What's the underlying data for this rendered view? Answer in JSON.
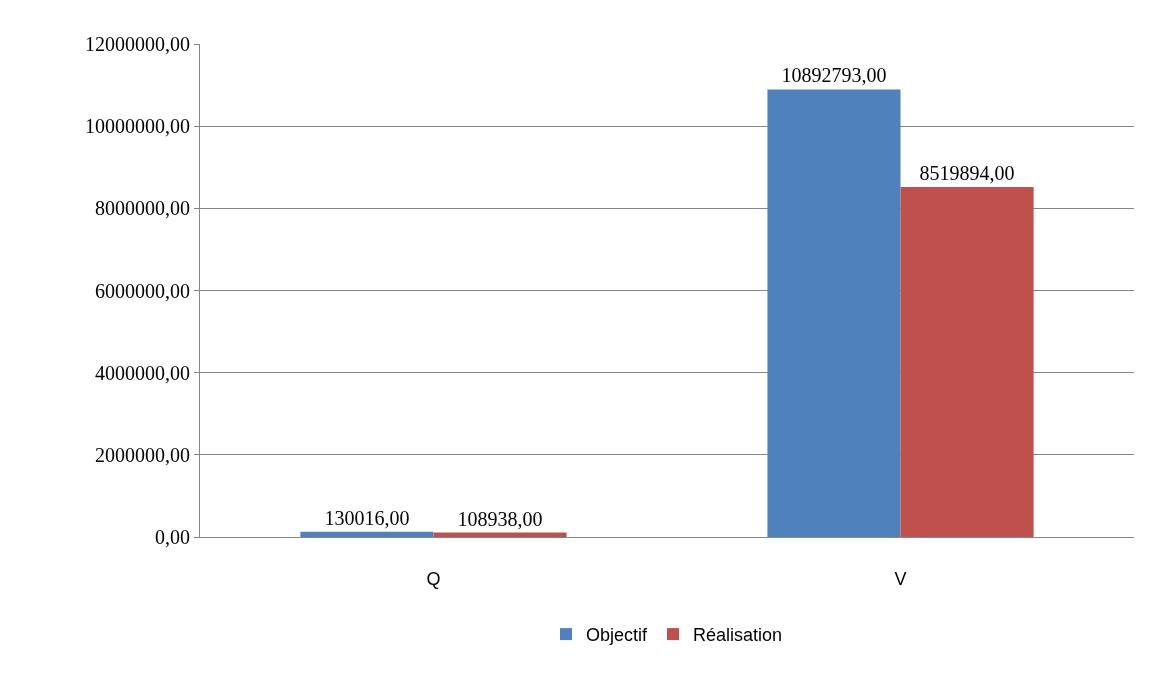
{
  "chart_data": {
    "type": "bar",
    "categories": [
      "Q",
      "V"
    ],
    "series": [
      {
        "name": "Objectif",
        "color": "#4f81bd",
        "values": [
          130016,
          10892793
        ],
        "value_labels": [
          "130016,00",
          "10892793,00"
        ]
      },
      {
        "name": "Réalisation",
        "color": "#c0504d",
        "values": [
          108938,
          8519894
        ],
        "value_labels": [
          "108938,00",
          "8519894,00"
        ]
      }
    ],
    "ylim": [
      0,
      12000000
    ],
    "yticks": [
      {
        "value": 0,
        "label": "0,00"
      },
      {
        "value": 2000000,
        "label": "2000000,00"
      },
      {
        "value": 4000000,
        "label": "4000000,00"
      },
      {
        "value": 6000000,
        "label": "6000000,00"
      },
      {
        "value": 8000000,
        "label": "8000000,00"
      },
      {
        "value": 10000000,
        "label": "10000000,00"
      },
      {
        "value": 12000000,
        "label": "12000000,00"
      }
    ],
    "grid": "y",
    "legend": "bottom"
  }
}
